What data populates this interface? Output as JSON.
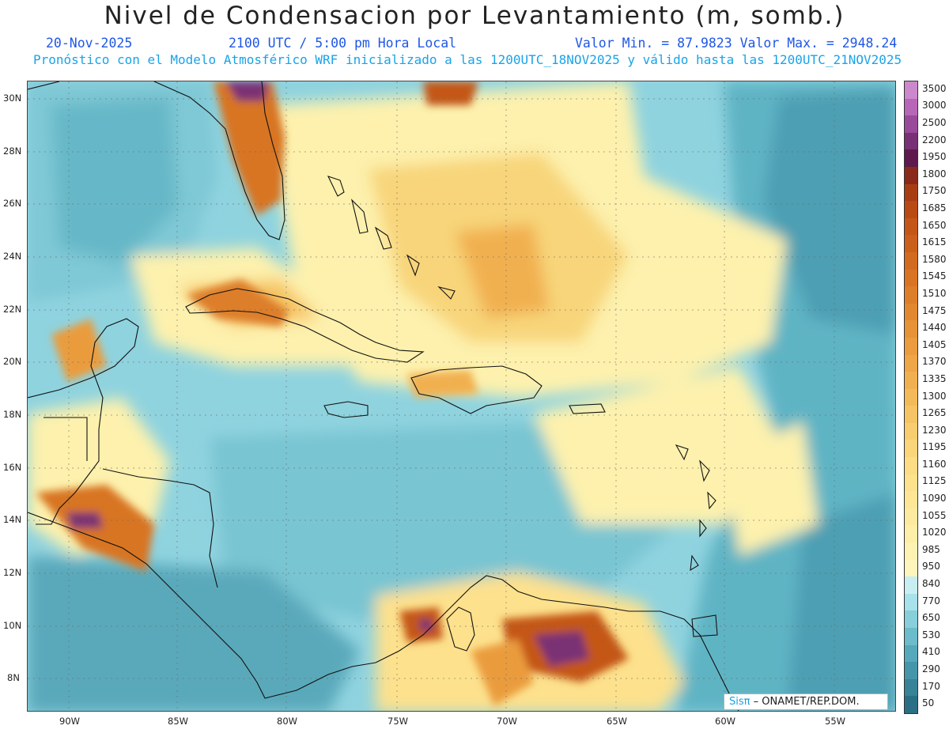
{
  "header": {
    "title": "Nivel de Condensacion por Levantamiento (m, somb.)",
    "date": "20-Nov-2025",
    "time": "2100 UTC / 5:00 pm Hora Local",
    "min_max": "Valor Min. = 87.9823  Valor Max. = 2948.24",
    "forecast_info": "Pronóstico con el Modelo Atmosférico WRF inicializado a las 1200UTC_18NOV2025 y válido hasta las  1200UTC_21NOV2025"
  },
  "map": {
    "lat_labels": [
      "30N",
      "28N",
      "26N",
      "24N",
      "22N",
      "20N",
      "18N",
      "16N",
      "14N",
      "12N",
      "10N",
      "8N"
    ],
    "lon_labels": [
      "90W",
      "85W",
      "80W",
      "75W",
      "70W",
      "65W",
      "60W",
      "55W"
    ],
    "extent": {
      "lon_min": -92.9,
      "lon_max": -52.4,
      "lat_min": 6.7,
      "lat_max": 30.7
    },
    "gridlines": true
  },
  "colorbar": {
    "levels": [
      "3500",
      "3000",
      "2500",
      "2200",
      "1950",
      "1800",
      "1750",
      "1685",
      "1650",
      "1615",
      "1580",
      "1545",
      "1510",
      "1475",
      "1440",
      "1405",
      "1370",
      "1335",
      "1300",
      "1265",
      "1230",
      "1195",
      "1160",
      "1125",
      "1090",
      "1055",
      "1020",
      "985",
      "950",
      "840",
      "770",
      "650",
      "530",
      "410",
      "290",
      "170",
      "50"
    ],
    "colors": [
      "#cc88cc",
      "#b866b8",
      "#9a4a9a",
      "#7a3075",
      "#5e1a4c",
      "#8a2a1a",
      "#a83d14",
      "#b94a14",
      "#c45618",
      "#cb601c",
      "#d26a20",
      "#d87424",
      "#dd7e2a",
      "#e28830",
      "#e69236",
      "#ea9c3e",
      "#eea646",
      "#f1b050",
      "#f4ba5a",
      "#f6c464",
      "#f8cd6f",
      "#fad57a",
      "#fcdc84",
      "#fde18d",
      "#fee696",
      "#feea9f",
      "#fdeea8",
      "#fdf2b2",
      "#fdf5bc",
      "#c9eef2",
      "#a7e2ea",
      "#86cfdb",
      "#6cbccb",
      "#56a9bb",
      "#4596aa",
      "#378397",
      "#2a6f85"
    ]
  },
  "credit": {
    "sis": "Sisπ",
    "org": " – ONAMET/REP.DOM."
  }
}
